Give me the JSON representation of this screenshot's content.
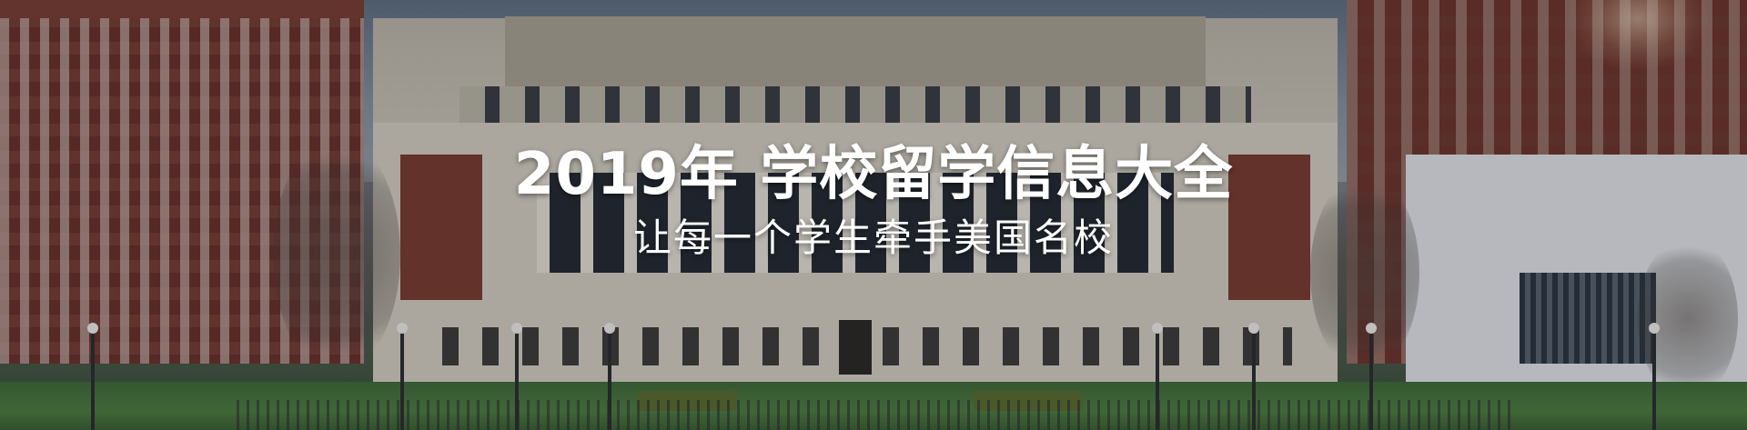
{
  "banner": {
    "title": "2019年 学校留学信息大全",
    "subtitle": "让每一个学生牵手美国名校",
    "background_image": "campus-library-photo",
    "colors": {
      "text": "#ffffff",
      "brick": "#6a2f28",
      "stone": "#d6d0c1",
      "lawn": "#4d7d3d"
    }
  }
}
